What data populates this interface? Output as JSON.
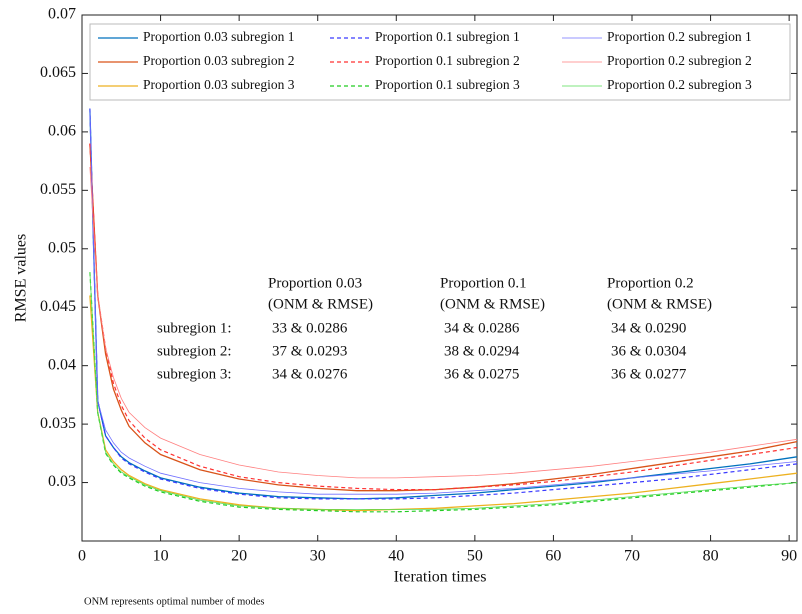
{
  "chart_data": {
    "type": "line",
    "xlabel": "Iteration times",
    "ylabel": "RMSE values",
    "xlim": [
      0,
      91
    ],
    "ylim": [
      0.025,
      0.07
    ],
    "xticks": [
      0,
      10,
      20,
      30,
      40,
      50,
      60,
      70,
      80,
      90
    ],
    "yticks": [
      0.03,
      0.035,
      0.04,
      0.045,
      0.05,
      0.055,
      0.06,
      0.065,
      0.07
    ],
    "legend": "upper left",
    "x": [
      1,
      2,
      3,
      4,
      5,
      6,
      8,
      10,
      15,
      20,
      25,
      30,
      35,
      40,
      45,
      50,
      55,
      60,
      65,
      70,
      75,
      80,
      85,
      91
    ],
    "series": [
      {
        "name": "Proportion 0.03 subregion 1",
        "color": "#0072bd",
        "style": "solid",
        "values": [
          0.062,
          0.037,
          0.034,
          0.033,
          0.0322,
          0.0317,
          0.031,
          0.0304,
          0.0296,
          0.0291,
          0.0288,
          0.0287,
          0.0286,
          0.0287,
          0.0289,
          0.0291,
          0.0294,
          0.0297,
          0.03,
          0.0304,
          0.0308,
          0.0312,
          0.0316,
          0.0322
        ]
      },
      {
        "name": "Proportion 0.03 subregion 2",
        "color": "#d95319",
        "style": "solid",
        "values": [
          0.059,
          0.046,
          0.041,
          0.038,
          0.0362,
          0.0348,
          0.0334,
          0.0324,
          0.0311,
          0.0303,
          0.0298,
          0.0295,
          0.0293,
          0.0293,
          0.0294,
          0.0296,
          0.0299,
          0.0303,
          0.0307,
          0.0312,
          0.0317,
          0.0322,
          0.0327,
          0.0335
        ]
      },
      {
        "name": "Proportion 0.03 subregion 3",
        "color": "#edb120",
        "style": "solid",
        "values": [
          0.046,
          0.036,
          0.0328,
          0.0318,
          0.0311,
          0.0306,
          0.0299,
          0.0294,
          0.0286,
          0.0281,
          0.0278,
          0.0277,
          0.0276,
          0.0277,
          0.0278,
          0.028,
          0.0282,
          0.0285,
          0.0288,
          0.0291,
          0.0295,
          0.0299,
          0.0303,
          0.0308
        ]
      },
      {
        "name": "Proportion 0.1 subregion 1",
        "color": "#3a3aff",
        "style": "dashed",
        "values": [
          0.062,
          0.037,
          0.034,
          0.033,
          0.0321,
          0.0316,
          0.0309,
          0.0303,
          0.0295,
          0.029,
          0.0287,
          0.0286,
          0.0286,
          0.0286,
          0.0287,
          0.0289,
          0.0291,
          0.0294,
          0.0297,
          0.03,
          0.0303,
          0.0307,
          0.0311,
          0.0316
        ]
      },
      {
        "name": "Proportion 0.1 subregion 2",
        "color": "#ff3030",
        "style": "dashed",
        "values": [
          0.059,
          0.046,
          0.0415,
          0.0385,
          0.0366,
          0.0353,
          0.0338,
          0.0328,
          0.0314,
          0.0305,
          0.03,
          0.0297,
          0.0295,
          0.0294,
          0.0294,
          0.0296,
          0.0298,
          0.0301,
          0.0305,
          0.0309,
          0.0314,
          0.0319,
          0.0324,
          0.033
        ]
      },
      {
        "name": "Proportion 0.1 subregion 3",
        "color": "#22cc22",
        "style": "dashed",
        "values": [
          0.048,
          0.036,
          0.0325,
          0.0315,
          0.0308,
          0.0304,
          0.0297,
          0.0292,
          0.0284,
          0.0279,
          0.0277,
          0.0276,
          0.0275,
          0.0275,
          0.0276,
          0.0277,
          0.0279,
          0.0281,
          0.0284,
          0.0287,
          0.029,
          0.0293,
          0.0296,
          0.03
        ]
      },
      {
        "name": "Proportion 0.2 subregion 1",
        "color": "#7070ff",
        "style": "thin",
        "values": [
          0.062,
          0.037,
          0.0345,
          0.0334,
          0.0326,
          0.0321,
          0.0314,
          0.0308,
          0.03,
          0.0295,
          0.0292,
          0.029,
          0.029,
          0.029,
          0.0291,
          0.0293,
          0.0295,
          0.0298,
          0.0301,
          0.0304,
          0.0307,
          0.031,
          0.0314,
          0.0318
        ]
      },
      {
        "name": "Proportion 0.2 subregion 2",
        "color": "#ff7f7f",
        "style": "thin",
        "values": [
          0.057,
          0.046,
          0.0415,
          0.039,
          0.0372,
          0.036,
          0.0347,
          0.0338,
          0.0324,
          0.0315,
          0.0309,
          0.0306,
          0.0304,
          0.0304,
          0.0305,
          0.0306,
          0.0308,
          0.0311,
          0.0314,
          0.0318,
          0.0322,
          0.0326,
          0.0331,
          0.0337
        ]
      },
      {
        "name": "Proportion 0.2 subregion 3",
        "color": "#55dd55",
        "style": "thin",
        "values": [
          0.048,
          0.036,
          0.0326,
          0.0316,
          0.0309,
          0.0305,
          0.0298,
          0.0293,
          0.0285,
          0.028,
          0.0278,
          0.0277,
          0.0277,
          0.0277,
          0.0277,
          0.0278,
          0.028,
          0.0282,
          0.0285,
          0.0288,
          0.0291,
          0.0294,
          0.0297,
          0.03
        ]
      }
    ],
    "annotation_table": {
      "columns": [
        [
          "Proportion 0.03",
          "(ONM & RMSE)"
        ],
        [
          "Proportion 0.1",
          "(ONM & RMSE)"
        ],
        [
          "Proportion 0.2",
          "(ONM & RMSE)"
        ]
      ],
      "rows": [
        {
          "label": "subregion 1:",
          "cells": [
            "33 & 0.0286",
            "34 & 0.0286",
            "34 & 0.0290"
          ]
        },
        {
          "label": "subregion 2:",
          "cells": [
            "37 & 0.0293",
            "38 & 0.0294",
            "36 & 0.0304"
          ]
        },
        {
          "label": "subregion 3:",
          "cells": [
            "34 & 0.0276",
            "36 & 0.0275",
            "36 & 0.0277"
          ]
        }
      ]
    },
    "footnote": "ONM represents optimal number of modes"
  }
}
